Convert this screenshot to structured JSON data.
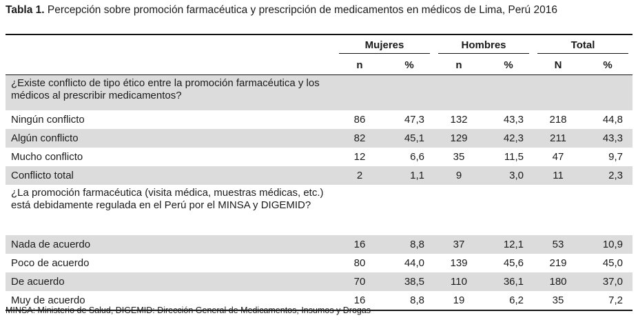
{
  "caption": {
    "label": "Tabla 1.",
    "text": " Percepción sobre promoción farmacéutica y prescripción de medicamentos en médicos de Lima, Perú 2016"
  },
  "header": {
    "groups": [
      "Mujeres",
      "Hombres",
      "Total"
    ],
    "subcols": [
      "n",
      "%",
      "n",
      "%",
      "N",
      "%"
    ]
  },
  "sections": [
    {
      "question": "¿Existe conflicto de tipo ético entre la promoción farmacéutica y los médicos al prescribir medicamentos?",
      "rows": [
        {
          "label": "Ningún conflicto",
          "values": [
            "86",
            "47,3",
            "132",
            "43,3",
            "218",
            "44,8"
          ]
        },
        {
          "label": "Algún conflicto",
          "values": [
            "82",
            "45,1",
            "129",
            "42,3",
            "211",
            "43,3"
          ]
        },
        {
          "label": "Mucho conflicto",
          "values": [
            "12",
            "6,6",
            "35",
            "11,5",
            "47",
            "9,7"
          ]
        },
        {
          "label": "Conflicto total",
          "values": [
            "2",
            "1,1",
            "9",
            "3,0",
            "11",
            "2,3"
          ]
        }
      ]
    },
    {
      "question": "¿La promoción farmacéutica (visita médica, muestras médicas, etc.) está debidamente regulada en el Perú por el MINSA y DIGEMID?",
      "rows": [
        {
          "label": "Nada de acuerdo",
          "values": [
            "16",
            "8,8",
            "37",
            "12,1",
            "53",
            "10,9"
          ]
        },
        {
          "label": "Poco de acuerdo",
          "values": [
            "80",
            "44,0",
            "139",
            "45,6",
            "219",
            "45,0"
          ]
        },
        {
          "label": "De acuerdo",
          "values": [
            "70",
            "38,5",
            "110",
            "36,1",
            "180",
            "37,0"
          ]
        },
        {
          "label": "Muy de acuerdo",
          "values": [
            "16",
            "8,8",
            "19",
            "6,2",
            "35",
            "7,2"
          ]
        }
      ]
    }
  ],
  "footnote": "MINSA: Ministerio de Salud, DIGEMID: Dirección General de Medicamentos, Insumos y Drogas"
}
